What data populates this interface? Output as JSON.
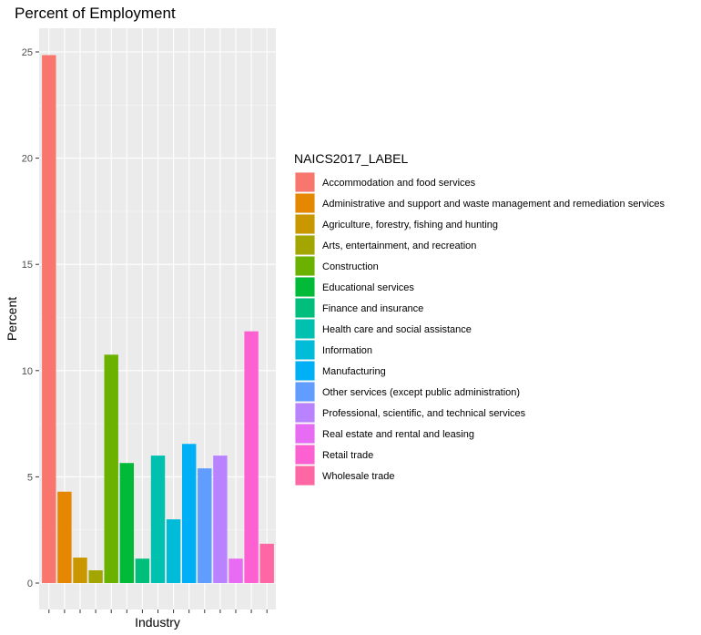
{
  "chart_data": {
    "type": "bar",
    "title": "Percent of Employment",
    "xlabel": "Industry",
    "ylabel": "Percent",
    "ylim": [
      0,
      26
    ],
    "yticks": [
      0,
      5,
      10,
      15,
      20,
      25
    ],
    "x_tick_labels_visible": false,
    "grid": true,
    "legend_title": "NAICS2017_LABEL",
    "legend_position": "right",
    "categories": [
      "Accommodation and food services",
      "Administrative and support and waste management and remediation services",
      "Agriculture, forestry, fishing and hunting",
      "Arts, entertainment, and recreation",
      "Construction",
      "Educational services",
      "Finance and insurance",
      "Health care and social assistance",
      "Information",
      "Manufacturing",
      "Other services (except public administration)",
      "Professional, scientific, and technical services",
      "Real estate and rental and leasing",
      "Retail trade",
      "Wholesale trade"
    ],
    "values": [
      24.85,
      4.3,
      1.2,
      0.6,
      10.75,
      5.65,
      1.15,
      6.0,
      3.0,
      6.55,
      5.4,
      6.0,
      1.15,
      11.85,
      1.85
    ],
    "colors": [
      "#F8766D",
      "#E58700",
      "#C99800",
      "#A3A500",
      "#6BB100",
      "#00BA38",
      "#00BF7D",
      "#00C0AF",
      "#00BCD8",
      "#00B0F6",
      "#619CFF",
      "#B983FF",
      "#E76BF3",
      "#FD61D1",
      "#FF67A4"
    ]
  }
}
